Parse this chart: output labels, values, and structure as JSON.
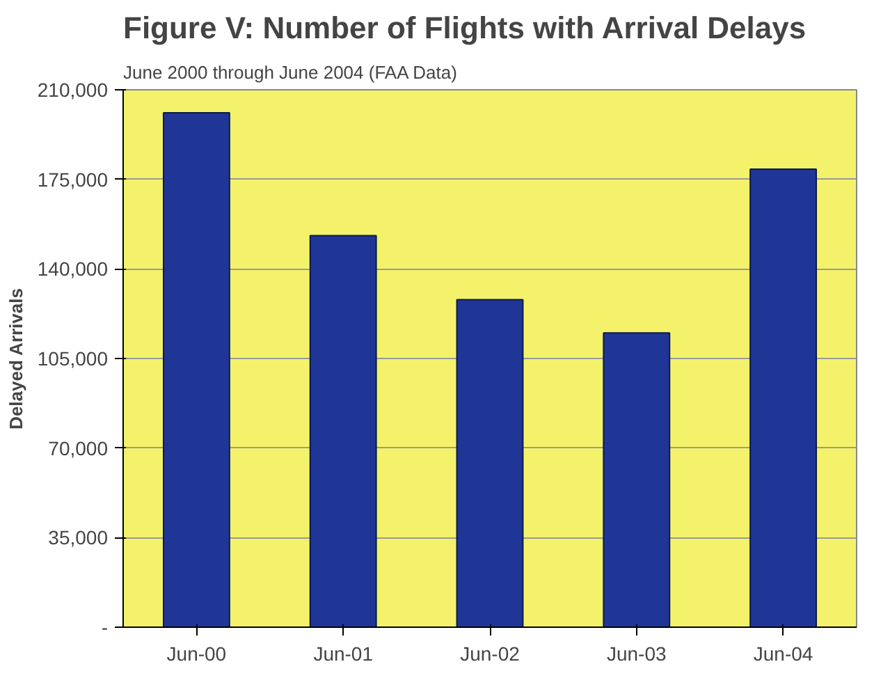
{
  "chart_data": {
    "type": "bar",
    "title": "Figure V:  Number of Flights with Arrival Delays",
    "subtitle": "June 2000 through June 2004 (FAA Data)",
    "ylabel": "Delayed Arrivals",
    "categories": [
      "Jun-00",
      "Jun-01",
      "Jun-02",
      "Jun-03",
      "Jun-04"
    ],
    "values": [
      201000,
      153000,
      128000,
      115000,
      179000
    ],
    "color": "#1f3696",
    "ylim": [
      0,
      210000
    ],
    "yticks": [
      {
        "value": 0,
        "label": "-"
      },
      {
        "value": 35000,
        "label": "35,000"
      },
      {
        "value": 70000,
        "label": "70,000"
      },
      {
        "value": 105000,
        "label": "105,000"
      },
      {
        "value": 140000,
        "label": "140,000"
      },
      {
        "value": 175000,
        "label": "175,000"
      },
      {
        "value": 210000,
        "label": "210,000"
      }
    ],
    "grid": "y"
  }
}
